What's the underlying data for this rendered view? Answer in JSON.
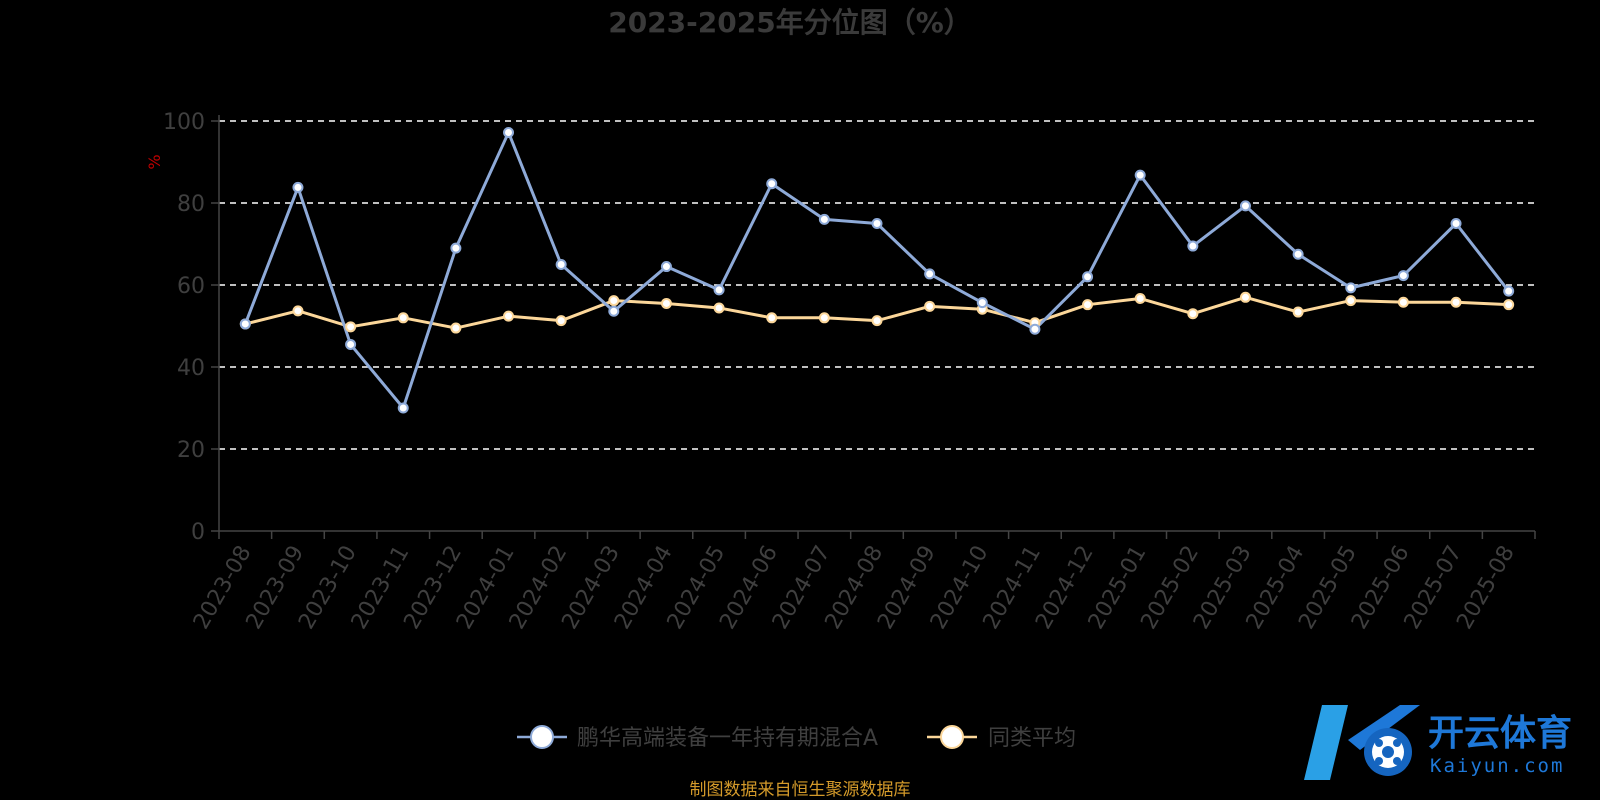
{
  "chart_data": {
    "type": "line",
    "title": "2023-2025年分位图（%）",
    "ylabel": "%",
    "xlabel": "",
    "ylim": [
      0,
      100
    ],
    "yticks": [
      0,
      20,
      40,
      60,
      80,
      100
    ],
    "grid": true,
    "legend_position": "bottom-center",
    "categories": [
      "2023-08",
      "2023-09",
      "2023-10",
      "2023-11",
      "2023-12",
      "2024-01",
      "2024-02",
      "2024-03",
      "2024-04",
      "2024-05",
      "2024-06",
      "2024-07",
      "2024-08",
      "2024-09",
      "2024-10",
      "2024-11",
      "2024-12",
      "2025-01",
      "2025-02",
      "2025-03",
      "2025-04",
      "2025-05",
      "2025-06",
      "2025-07",
      "2025-08"
    ],
    "series": [
      {
        "name": "鹏华高端装备一年持有期混合A",
        "color": "#8eaad8",
        "values": [
          50.5,
          83.8,
          45.5,
          30.0,
          69.0,
          97.2,
          65.0,
          53.6,
          64.5,
          58.8,
          84.7,
          76.0,
          75.0,
          62.7,
          55.7,
          49.2,
          62.0,
          86.8,
          69.5,
          79.3,
          67.5,
          59.3,
          62.3,
          75.0,
          58.5
        ]
      },
      {
        "name": "同类平均",
        "color": "#fcd79a",
        "values": [
          50.5,
          53.7,
          49.8,
          52.0,
          49.5,
          52.4,
          51.3,
          56.2,
          55.5,
          54.4,
          52.0,
          52.0,
          51.3,
          54.8,
          54.1,
          50.8,
          55.2,
          56.7,
          53.0,
          57.0,
          53.4,
          56.2,
          55.8,
          55.8,
          55.2
        ]
      }
    ]
  },
  "source_note": "制图数据来自恒生聚源数据库",
  "watermark": {
    "cn": "开云体育",
    "en": "Kaiyun.com"
  }
}
